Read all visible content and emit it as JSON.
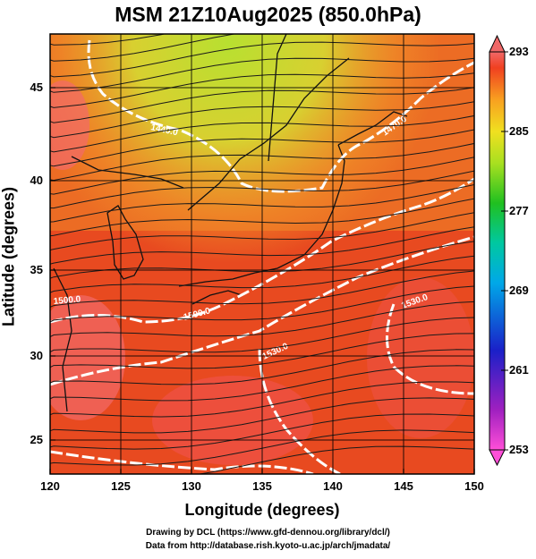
{
  "title": "MSM 21Z10Aug2025 (850.0hPa)",
  "xlabel": "Longitude (degrees)",
  "ylabel": "Latitude  (degrees)",
  "x_ticks": [
    "120",
    "125",
    "130",
    "135",
    "140",
    "145",
    "150"
  ],
  "y_ticks": [
    "45",
    "40",
    "35",
    "30",
    "25"
  ],
  "colorbar_ticks": [
    "293",
    "285",
    "277",
    "269",
    "261",
    "253"
  ],
  "contour_labels": [
    "1440.0",
    "1470.0",
    "1500.0",
    "1530.0",
    "1530.0",
    "1500.0"
  ],
  "credit_line1": "Drawing by DCL (https://www.gfd-dennou.org/library/dcl/)",
  "credit_line2": "Data from http://database.rish.kyoto-u.ac.jp/arch/jmadata/",
  "colors": {
    "warm": "#e8401e",
    "hot": "#f26a6a",
    "mild": "#f08a2a",
    "cool": "#c8e030",
    "contour": "#ffffff",
    "coast": "#111111"
  },
  "chart_data": {
    "type": "map",
    "field": "temperature (K) with geopotential height contours and wind streamlines",
    "level": "850.0hPa",
    "time": "21Z10Aug2025",
    "xlim": [
      120,
      150
    ],
    "ylim": [
      22.5,
      47.5
    ],
    "colorbar_range": [
      253,
      293
    ],
    "colorbar_ticks": [
      293,
      285,
      277,
      269,
      261,
      253
    ]
  }
}
